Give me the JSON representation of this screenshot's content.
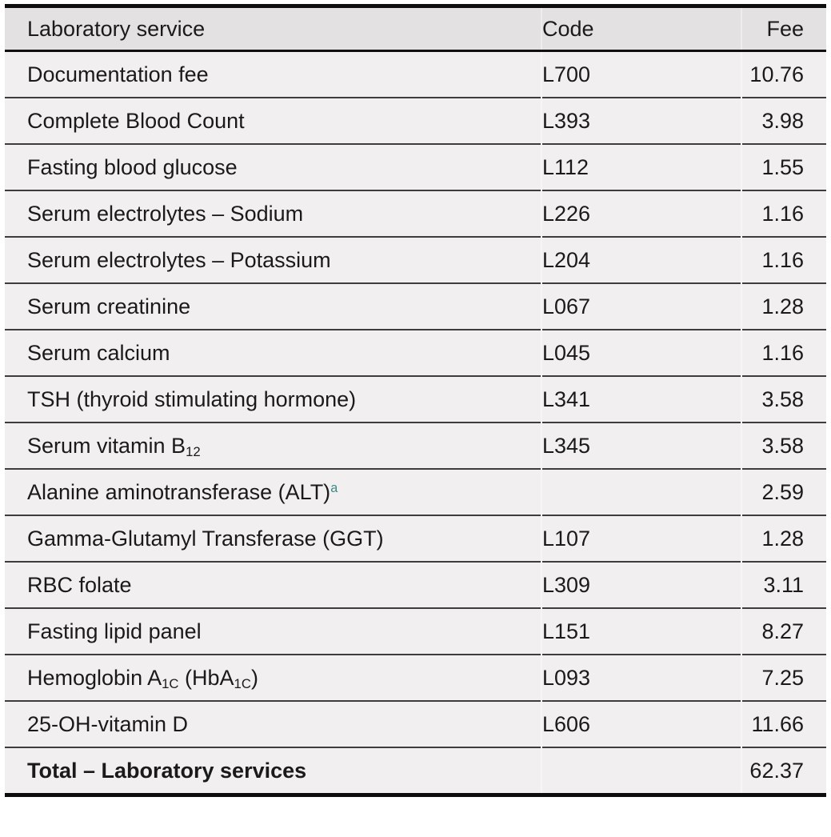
{
  "colors": {
    "header_background": "#e4e1e3",
    "row_background": "#f2eff1",
    "text": "#1a1a1a",
    "rule": "#0d0d0d",
    "footnote_marker": "#3c8a84"
  },
  "table": {
    "columns": [
      {
        "key": "service",
        "label": "Laboratory service",
        "align": "left"
      },
      {
        "key": "code",
        "label": "Code",
        "align": "left"
      },
      {
        "key": "fee",
        "label": "Fee",
        "align": "right"
      }
    ],
    "rows": [
      {
        "service": [
          {
            "text": "Documentation fee"
          }
        ],
        "code": "L700",
        "fee": "10.76"
      },
      {
        "service": [
          {
            "text": "Complete Blood Count"
          }
        ],
        "code": "L393",
        "fee": "3.98"
      },
      {
        "service": [
          {
            "text": "Fasting blood glucose"
          }
        ],
        "code": "L112",
        "fee": "1.55"
      },
      {
        "service": [
          {
            "text": "Serum electrolytes – Sodium"
          }
        ],
        "code": "L226",
        "fee": "1.16"
      },
      {
        "service": [
          {
            "text": "Serum electrolytes – Potassium"
          }
        ],
        "code": "L204",
        "fee": "1.16"
      },
      {
        "service": [
          {
            "text": "Serum creatinine"
          }
        ],
        "code": "L067",
        "fee": "1.28"
      },
      {
        "service": [
          {
            "text": "Serum calcium"
          }
        ],
        "code": "L045",
        "fee": "1.16"
      },
      {
        "service": [
          {
            "text": "TSH (thyroid stimulating hormone)"
          }
        ],
        "code": "L341",
        "fee": "3.58"
      },
      {
        "service": [
          {
            "text": "Serum vitamin B"
          },
          {
            "text": "12",
            "style": "sub"
          }
        ],
        "code": "L345",
        "fee": "3.58"
      },
      {
        "service": [
          {
            "text": "Alanine aminotransferase (ALT)"
          },
          {
            "text": "a",
            "style": "sup-footnote"
          }
        ],
        "code": "",
        "fee": "2.59"
      },
      {
        "service": [
          {
            "text": "Gamma-Glutamyl Transferase (GGT)"
          }
        ],
        "code": "L107",
        "fee": "1.28"
      },
      {
        "service": [
          {
            "text": "RBC folate"
          }
        ],
        "code": "L309",
        "fee": "3.11"
      },
      {
        "service": [
          {
            "text": "Fasting lipid panel"
          }
        ],
        "code": "L151",
        "fee": "8.27"
      },
      {
        "service": [
          {
            "text": "Hemoglobin A"
          },
          {
            "text": "1C",
            "style": "sub"
          },
          {
            "text": " (HbA"
          },
          {
            "text": "1C",
            "style": "sub"
          },
          {
            "text": ")"
          }
        ],
        "code": "L093",
        "fee": "7.25"
      },
      {
        "service": [
          {
            "text": "25-OH-vitamin D"
          }
        ],
        "code": "L606",
        "fee": "11.66"
      },
      {
        "service": [
          {
            "text": "Total – Laboratory services"
          }
        ],
        "code": "",
        "fee": "62.37",
        "bold": true,
        "total": true
      }
    ]
  }
}
